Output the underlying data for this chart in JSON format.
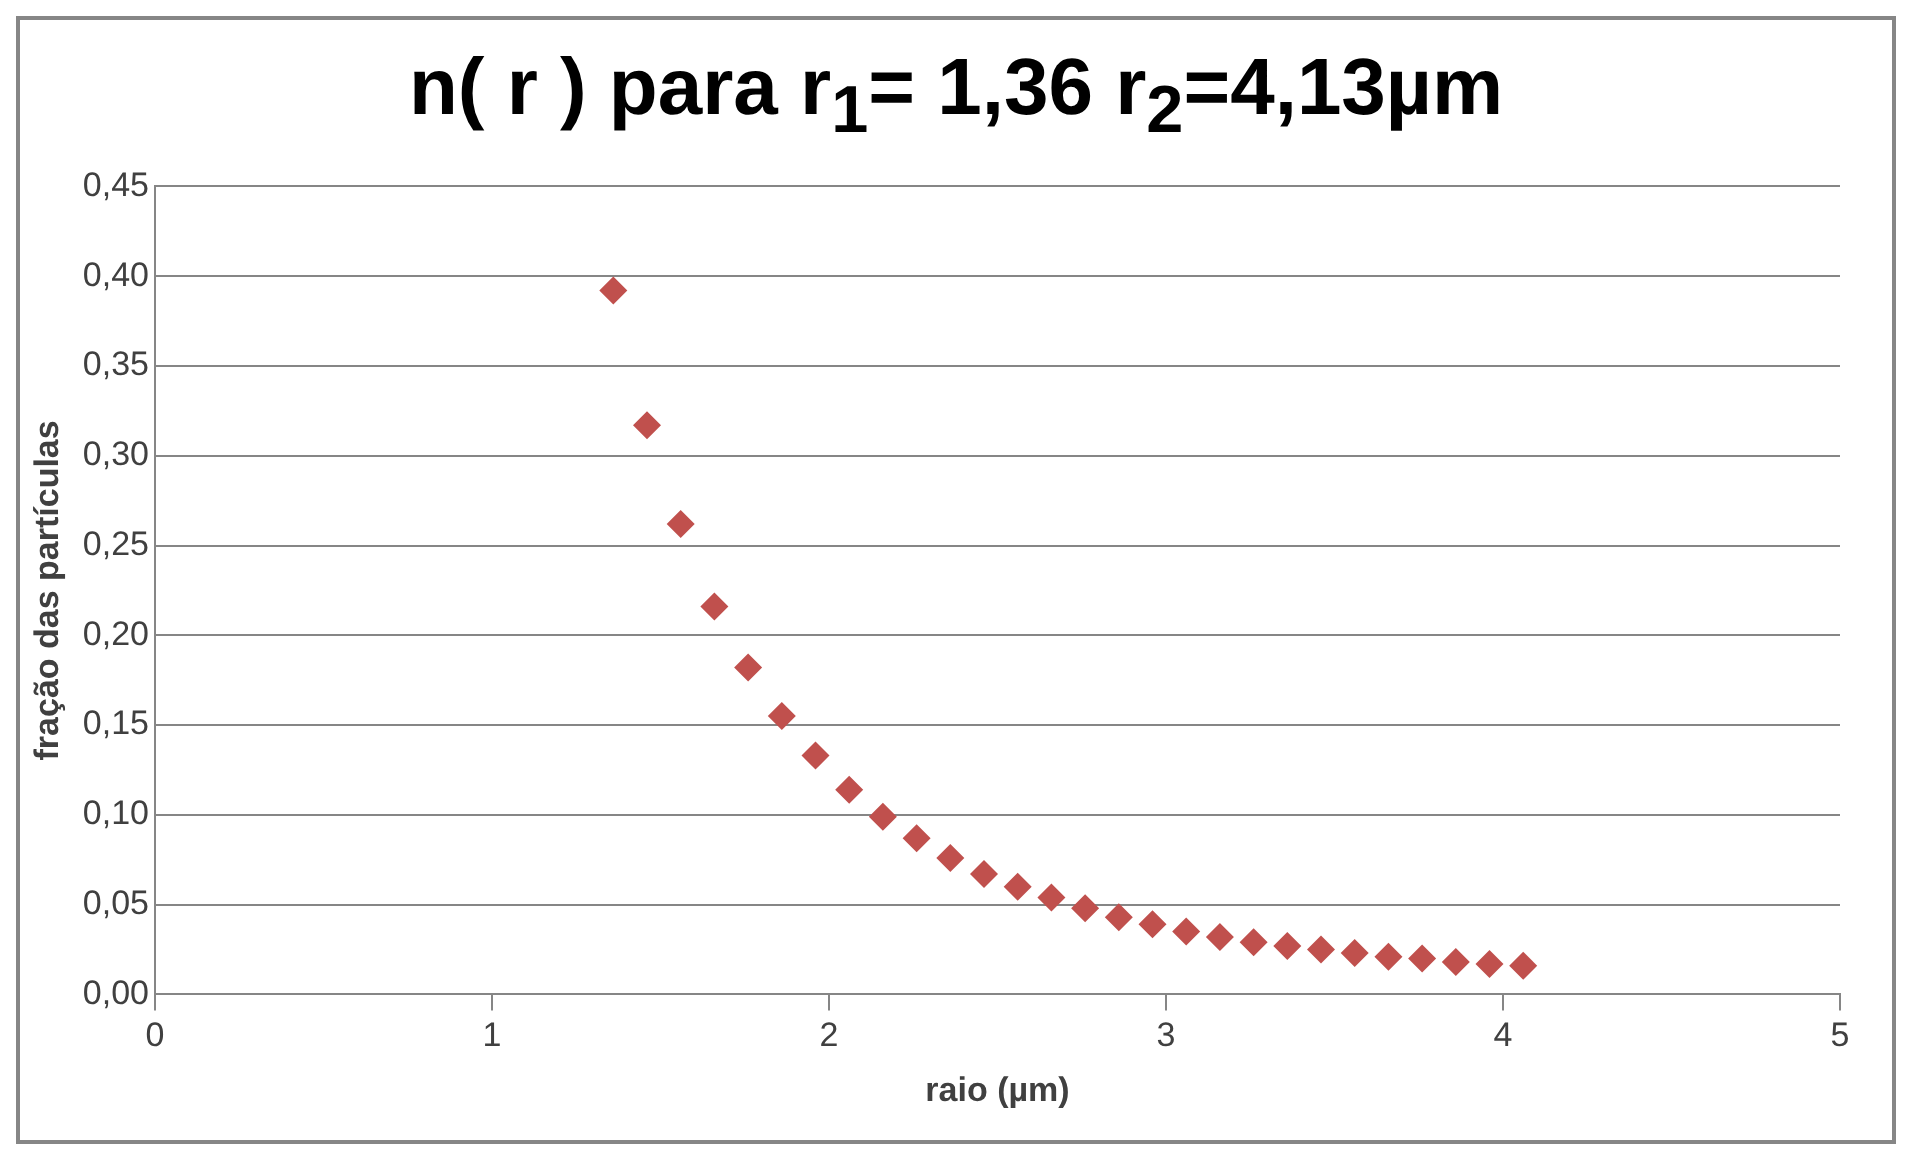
{
  "chart_data": {
    "type": "scatter",
    "title": "n( r ) para r$_{1}$= 1,36 r$_{2}$=4,13µm",
    "xlabel": "raio (µm)",
    "ylabel": "fração das partículas",
    "series": [
      {
        "color": "#c0504d",
        "x": [
          1.36,
          1.46,
          1.56,
          1.66,
          1.76,
          1.86,
          1.96,
          2.06,
          2.16,
          2.26,
          2.36,
          2.46,
          2.56,
          2.66,
          2.76,
          2.86,
          2.96,
          3.06,
          3.16,
          3.26,
          3.36,
          3.46,
          3.56,
          3.66,
          3.76,
          3.86,
          3.96,
          4.06
        ],
        "values": [
          0.392,
          0.317,
          0.262,
          0.216,
          0.182,
          0.155,
          0.133,
          0.114,
          0.099,
          0.087,
          0.076,
          0.067,
          0.06,
          0.054,
          0.048,
          0.043,
          0.039,
          0.035,
          0.032,
          0.029,
          0.027,
          0.025,
          0.023,
          0.021,
          0.02,
          0.018,
          0.017,
          0.016
        ]
      }
    ],
    "xlim": [
      0,
      5
    ],
    "xticks": [
      0,
      1,
      2,
      3,
      4,
      5
    ],
    "ylim": [
      0,
      0.45
    ],
    "yticks": [
      {
        "value": 0,
        "label": "0,00"
      },
      {
        "value": 0.05,
        "label": "0,05"
      },
      {
        "value": 0.1,
        "label": "0,10"
      },
      {
        "value": 0.15,
        "label": "0,15"
      },
      {
        "value": 0.2,
        "label": "0,20"
      },
      {
        "value": 0.25,
        "label": "0,25"
      },
      {
        "value": 0.3,
        "label": "0,30"
      },
      {
        "value": 0.35,
        "label": "0,35"
      },
      {
        "value": 0.4,
        "label": "0,40"
      },
      {
        "value": 0.45,
        "label": "0,45"
      }
    ],
    "grid": "y",
    "legend": false,
    "marker": "diamond"
  }
}
